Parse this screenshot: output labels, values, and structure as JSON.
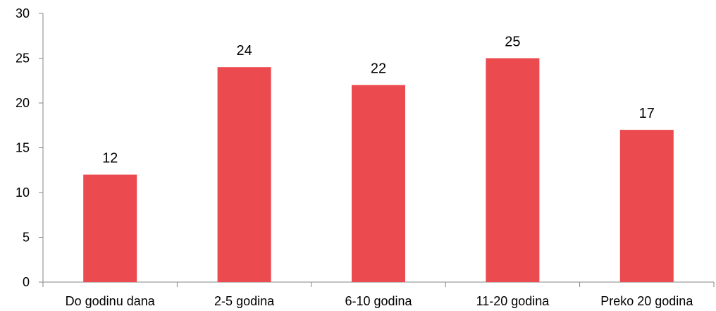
{
  "chart_data": {
    "type": "bar",
    "categories": [
      "Do godinu dana",
      "2-5 godina",
      "6-10 godina",
      "11-20 godina",
      "Preko 20 godina"
    ],
    "values": [
      12,
      24,
      22,
      25,
      17
    ],
    "data_labels": [
      "12",
      "24",
      "22",
      "25",
      "17"
    ],
    "ylim": [
      0,
      30
    ],
    "yticks": [
      0,
      5,
      10,
      15,
      20,
      25,
      30
    ],
    "ytick_labels": [
      "0",
      "5",
      "10",
      "15",
      "20",
      "25",
      "30"
    ],
    "grid": false,
    "legend": "none",
    "bar_color": "#eb4a4f",
    "axis_color": "#868686"
  }
}
